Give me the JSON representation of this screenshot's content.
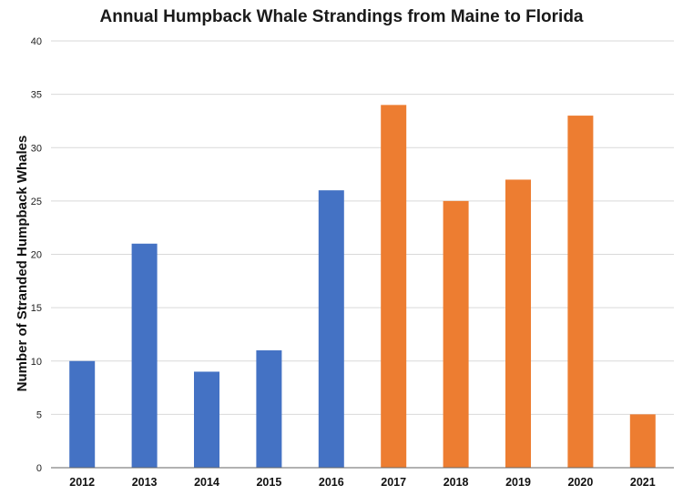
{
  "chart_data": {
    "type": "bar",
    "title": "Annual Humpback Whale Strandings from Maine to Florida",
    "xlabel": "",
    "ylabel": "Number of Stranded Humpback Whales",
    "categories": [
      "2012",
      "2013",
      "2014",
      "2015",
      "2016",
      "2017",
      "2018",
      "2019",
      "2020",
      "2021"
    ],
    "values": [
      10,
      21,
      9,
      11,
      26,
      34,
      25,
      27,
      33,
      5
    ],
    "bar_colors": [
      "#4472c4",
      "#4472c4",
      "#4472c4",
      "#4472c4",
      "#4472c4",
      "#ed7d31",
      "#ed7d31",
      "#ed7d31",
      "#ed7d31",
      "#ed7d31"
    ],
    "ylim": [
      0,
      40
    ],
    "yticks": [
      0,
      5,
      10,
      15,
      20,
      25,
      30,
      35,
      40
    ],
    "grid": true,
    "legend": "none"
  }
}
